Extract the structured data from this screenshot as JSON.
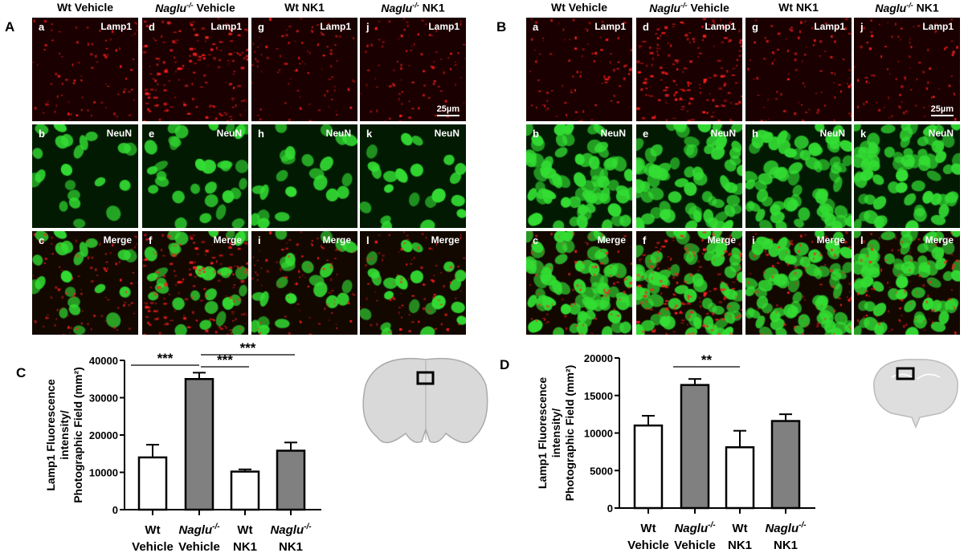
{
  "columns": [
    {
      "pre": "Wt",
      "italic": "",
      "sup": "",
      "post": "Wt Vehicle"
    },
    {
      "pre": "",
      "italic": "Naglu",
      "sup": "-/-",
      "post": " Vehicle"
    },
    {
      "pre": "",
      "italic": "",
      "sup": "",
      "post": "Wt NK1"
    },
    {
      "pre": "",
      "italic": "Naglu",
      "sup": "-/-",
      "post": " NK1"
    }
  ],
  "panels": [
    {
      "label": "A",
      "letters": [
        "a",
        "b",
        "c",
        "d",
        "e",
        "f",
        "g",
        "h",
        "i",
        "j",
        "k",
        "l"
      ]
    },
    {
      "label": "B",
      "letters": [
        "a",
        "b",
        "c",
        "d",
        "e",
        "f",
        "g",
        "h",
        "i",
        "j",
        "k",
        "l"
      ]
    }
  ],
  "markers": [
    "Lamp1",
    "NeuN",
    "Merge"
  ],
  "scale_bar": "25µm",
  "colors": {
    "lamp1": "#ff2020",
    "neun": "#33dd33",
    "bar_wt": "#ffffff",
    "bar_naglu": "#808080"
  },
  "chart_data": [
    {
      "type": "bar",
      "panel": "C",
      "title": "",
      "ylabel_lines": [
        "Lamp1 Fluorescence",
        "intensity/",
        "Photographic Field (mm²)"
      ],
      "categories": [
        {
          "l1": "Wt",
          "sup": "",
          "l2": "Vehicle",
          "italic": false
        },
        {
          "l1": "Naglu",
          "sup": "-/-",
          "l2": "Vehicle",
          "italic": true
        },
        {
          "l1": "Wt",
          "sup": "",
          "l2": "NK1",
          "italic": false
        },
        {
          "l1": "Naglu",
          "sup": "-/-",
          "l2": "NK1",
          "italic": true
        }
      ],
      "values": [
        14000,
        35000,
        10200,
        15800
      ],
      "errors": [
        3400,
        1700,
        600,
        2200
      ],
      "yticks": [
        "0",
        "10000",
        "20000",
        "30000",
        "40000"
      ],
      "ylim": [
        0,
        40000
      ],
      "significance": [
        {
          "from": 0,
          "to": 1,
          "label": "***"
        },
        {
          "from": 1,
          "to": 2,
          "label": "***"
        },
        {
          "from": 1,
          "to": 3,
          "label": "***"
        }
      ]
    },
    {
      "type": "bar",
      "panel": "D",
      "title": "",
      "ylabel_lines": [
        "Lamp1  Fluorescence",
        "intensity/",
        "Photographic Field (mm²)"
      ],
      "categories": [
        {
          "l1": "Wt",
          "sup": "",
          "l2": "Vehicle",
          "italic": false
        },
        {
          "l1": "Naglu",
          "sup": "-/-",
          "l2": "Vehicle",
          "italic": true
        },
        {
          "l1": "Wt",
          "sup": "",
          "l2": "NK1",
          "italic": false
        },
        {
          "l1": "Naglu",
          "sup": "-/-",
          "l2": "NK1",
          "italic": true
        }
      ],
      "values": [
        11000,
        16400,
        8100,
        11600
      ],
      "errors": [
        1300,
        800,
        2200,
        900
      ],
      "yticks": [
        "0",
        "5000",
        "10000",
        "15000",
        "20000"
      ],
      "ylim": [
        0,
        20000
      ],
      "significance": [
        {
          "from": 1,
          "to": 2,
          "label": "**"
        }
      ]
    }
  ]
}
